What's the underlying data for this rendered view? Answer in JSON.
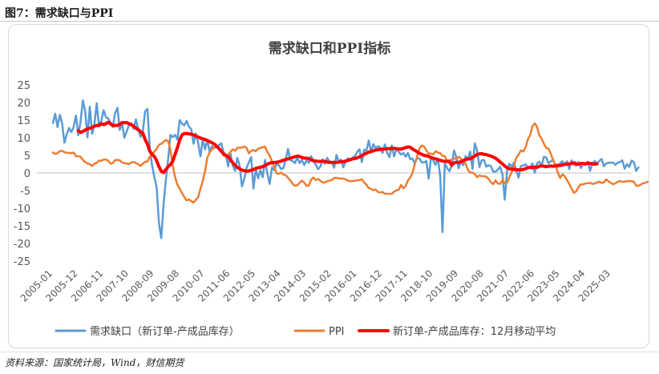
{
  "figure": {
    "label": "图7：需求缺口与PPI",
    "source": "资料来源：国家统计局，Wind，财信期货"
  },
  "chart_data": {
    "type": "line",
    "title": "需求缺口和PPI指标",
    "xlabel": "",
    "ylabel": "",
    "ylim": [
      -25,
      25
    ],
    "y_ticks": [
      -25,
      -20,
      -15,
      -10,
      -5,
      0,
      5,
      10,
      15,
      20,
      25
    ],
    "x_tick_labels": [
      "2005-01",
      "2005-12",
      "2006-11",
      "2007-10",
      "2008-09",
      "2009-08",
      "2010-07",
      "2011-06",
      "2012-05",
      "2013-04",
      "2014-03",
      "2015-02",
      "2016-01",
      "2016-12",
      "2017-11",
      "2018-10",
      "2019-09",
      "2020-08",
      "2021-07",
      "2022-06",
      "2023-05",
      "2024-04",
      "2025-03"
    ],
    "x_start": "2005-01",
    "n_months": 250,
    "grid": false,
    "legend_position": "bottom",
    "series": [
      {
        "name": "需求缺口（新订单-产成品库存）",
        "color": "#5b9bd5",
        "start_index": 0,
        "values": [
          14.2,
          16.8,
          13,
          16.5,
          14.1,
          8.6,
          11,
          12.8,
          11.6,
          13.1,
          16.3,
          10.7,
          14.7,
          20.6,
          17.5,
          10.1,
          18.8,
          11.1,
          13.8,
          19.8,
          13.2,
          14.8,
          17.8,
          15.8,
          15.5,
          14.1,
          13.1,
          17,
          18.5,
          12.2,
          14.2,
          10,
          11.8,
          13.6,
          14.1,
          12.6,
          15.2,
          12.4,
          10.3,
          11.8,
          17.5,
          18.2,
          7.4,
          2.2,
          -1.1,
          -4.1,
          -14.2,
          -18.5,
          -8.9,
          -2,
          4.1,
          10.8,
          10.2,
          10.8,
          9.5,
          15,
          14,
          13.5,
          14.8,
          13.1,
          12.5,
          8.3,
          11.2,
          8.5,
          4.7,
          9.5,
          6.7,
          9.4,
          5.9,
          7.6,
          7.1,
          7.4,
          7.9,
          8.4,
          5.9,
          5.1,
          1.9,
          5.6,
          2.2,
          0.6,
          4.3,
          2.1,
          -3.8,
          -1.7,
          1.4,
          3,
          4.5,
          -4.4,
          1.2,
          -1.5,
          0.8,
          -1.2,
          3.7,
          -0.1,
          -3.1,
          1.5,
          0.8,
          2.6,
          2.2,
          1.1,
          1.4,
          3.9,
          6.8,
          3.6,
          3.4,
          2.8,
          4.4,
          2.8,
          3.7,
          2.3,
          3.5,
          2.9,
          4.8,
          3.4,
          2.4,
          1.1,
          1.8,
          3.9,
          2.6,
          4.3,
          3.2,
          3.1,
          1.5,
          5.1,
          3.3,
          3.8,
          1.6,
          3.3,
          4.2,
          3.6,
          4.4,
          4.8,
          6,
          6.7,
          3.1,
          6.6,
          6.3,
          9.2,
          5.9,
          8.2,
          7,
          7.6,
          7.2,
          5.7,
          8.1,
          5.7,
          4.5,
          7.8,
          4.7,
          6.9,
          6,
          5.2,
          5.7,
          4.6,
          5.7,
          3.9,
          4.1,
          2.7,
          4.3,
          4.1,
          3,
          3,
          3.4,
          -1.6,
          4.4,
          3.6,
          2.3,
          4.1,
          -0.9,
          -16.8,
          2.7,
          1.4,
          0.5,
          2.1,
          6.4,
          4.4,
          1.3,
          3.3,
          2.2,
          4.8,
          3.9,
          6.1,
          1.1,
          8.4,
          6.4,
          1.7,
          3.6,
          3.7,
          1.8,
          2.2,
          1.9,
          0.4,
          0.4,
          0.9,
          1.8,
          -0.3,
          -7.6,
          0.6,
          2.6,
          1.8,
          3,
          0.7,
          -1.3,
          2,
          2.1,
          2.5,
          1.5,
          1.4,
          2.7,
          0.1,
          2.7,
          3.2,
          2,
          4.6,
          4.4,
          2.8,
          3.3,
          3.8,
          2.1,
          1.7,
          2.7,
          3.3,
          2.5,
          3.3,
          1.1,
          3.6,
          2.4,
          2.1,
          3.1,
          1.4,
          2.5,
          2.3,
          3.2,
          0.6,
          2.7,
          3.4,
          2.7,
          3.4,
          4,
          1.9,
          2.7,
          2.9,
          2.9,
          3,
          2.3,
          2.9,
          3.1,
          3.6,
          1.2,
          2.5,
          1.7,
          3.5,
          3.1,
          0.6,
          1.6
        ]
      },
      {
        "name": "PPI",
        "color": "#ed7d31",
        "start_index": 0,
        "values": [
          5.8,
          5.4,
          5.6,
          6.2,
          6.3,
          5.9,
          5.7,
          5.7,
          5.6,
          5.8,
          4.8,
          4.7,
          4.6,
          3.7,
          3.1,
          2.7,
          2.5,
          2,
          2.6,
          2.9,
          3.5,
          3.5,
          3.8,
          3.8,
          3.5,
          2.6,
          2.8,
          3.7,
          3.7,
          3.6,
          3,
          2.8,
          2.7,
          2.5,
          3,
          3.1,
          2.8,
          2.5,
          2,
          2.6,
          3.2,
          3.2,
          4.6,
          5,
          6.1,
          6.8,
          8,
          8.3,
          8.8,
          9.4,
          9,
          6.6,
          2,
          -1.2,
          -3.3,
          -4.5,
          -5.7,
          -6.8,
          -7.8,
          -7.5,
          -8,
          -8.4,
          -7.6,
          -6.8,
          -4.5,
          -2.3,
          0.6,
          4.4,
          5.8,
          6.8,
          7.1,
          7.6,
          7.3,
          6.4,
          5,
          4.7,
          5.1,
          6,
          6.7,
          6.3,
          7.1,
          7.2,
          7.2,
          7.5,
          7.1,
          5.6,
          6.3,
          6.5,
          6.2,
          6.9,
          7.1,
          7.3,
          7.5,
          6,
          5,
          3.3,
          1.7,
          -0.1,
          -0.2,
          0.1,
          -0.5,
          -0.6,
          -1.4,
          -2.1,
          -3.1,
          -3.6,
          -3.5,
          -2.8,
          -2.2,
          -2.7,
          -3.6,
          -3.6,
          -1.9,
          -1.3,
          -2,
          -1.7,
          -2.2,
          -2.7,
          -2.7,
          -2.3,
          -2.2,
          -2,
          -1.4,
          -1.4,
          -1.5,
          -1.6,
          -1.6,
          -1.8,
          -2.2,
          -2.3,
          -2.3,
          -2.2,
          -2.1,
          -2,
          -1.8,
          -2.7,
          -3.3,
          -4.3,
          -4.5,
          -4.9,
          -4.7,
          -5.4,
          -5.5,
          -5.4,
          -5.9,
          -5.9,
          -5.9,
          -5.9,
          -5.3,
          -4.9,
          -4.8,
          -3.4,
          -4.3,
          -3.7,
          -2.1,
          -1.3,
          0,
          2.6,
          4.8,
          6.9,
          7.8,
          7.5,
          6.4,
          5.5,
          5.5,
          5.3,
          6.2,
          5.8,
          5.6,
          4.9,
          4.7,
          3.4,
          3.7,
          3.7,
          4.1,
          4.1,
          4.6,
          4.1,
          3.2,
          2.7,
          0.9,
          0.1,
          0.1,
          -0.3,
          -1.2,
          -0.7,
          -0.9,
          -0.9,
          -1.1,
          -1.7,
          -2.6,
          -3.2,
          -2.1,
          -3,
          -3.1,
          -2,
          -2.9,
          -2.7,
          -1.2,
          0.2,
          2,
          4.3,
          5.2,
          6.4,
          6.1,
          7.2,
          9.5,
          10.7,
          13.3,
          14.1,
          13.1,
          10.7,
          9.7,
          8.3,
          7.1,
          6.9,
          5.4,
          3.6,
          2.1,
          0.2,
          -1.4,
          -0.4,
          -0.9,
          -2,
          -3.1,
          -4.4,
          -5.6,
          -5.2,
          -4,
          -3.2,
          -3.2,
          -3,
          -2.9,
          -2.8,
          -3.1,
          -3,
          -2.7,
          -2.5,
          -2.8,
          -2.7,
          -1.8,
          -2.4,
          -2.8,
          -3.2,
          -2.9,
          -2.5,
          -2.3,
          -2.5,
          -2.5,
          -2.3,
          -2.3,
          -2.3,
          -2.5,
          -3.6,
          -3.6,
          -3.3,
          -2.9,
          -2.8,
          -2.5
        ]
      },
      {
        "name": "新订单-产成品库存：12月移动平均",
        "color": "#ff0000",
        "start_index": 11,
        "values": [
          12,
          11.5,
          11.8,
          12.2,
          12.5,
          12.7,
          12.9,
          13.3,
          13.5,
          13.5,
          14,
          13.7,
          14,
          14.4,
          14,
          13.4,
          13.5,
          13.5,
          13.8,
          14.3,
          14.3,
          14.3,
          14,
          13.7,
          13.3,
          12.7,
          12.3,
          11.7,
          11.3,
          9.5,
          8.2,
          6.2,
          5.3,
          4.7,
          3.5,
          1.8,
          0.5,
          0.1,
          1,
          1.8,
          2.4,
          3.4,
          5.3,
          7.2,
          9.4,
          10.8,
          11.2,
          11.2,
          11.1,
          11,
          10.8,
          10.5,
          10.2,
          9.9,
          9.7,
          9.5,
          9.2,
          8.9,
          8.6,
          8.2,
          7.6,
          6.9,
          6.2,
          5.4,
          5,
          4.6,
          3.8,
          2.9,
          2.2,
          1.6,
          1.2,
          0.8,
          0.7,
          0.5,
          0.6,
          0.8,
          1,
          1.3,
          1.5,
          1.6,
          1.8,
          2.1,
          2.5,
          2.8,
          2.9,
          3,
          3,
          3.2,
          3.4,
          3.6,
          3.9,
          4,
          4.2,
          4.4,
          4.6,
          4.8,
          4.7,
          4.4,
          4.2,
          4.2,
          4.1,
          3.7,
          3.5,
          3.4,
          3.3,
          3.3,
          3.3,
          3.3,
          3.1,
          3,
          3,
          3,
          3,
          3.1,
          3.2,
          3.2,
          3.4,
          3.6,
          3.8,
          4,
          4.1,
          4.3,
          4.6,
          4.9,
          5.3,
          5.6,
          5.9,
          6.1,
          6.3,
          6.5,
          6.6,
          6.7,
          6.8,
          6.8,
          6.9,
          6.9,
          7,
          7,
          6.9,
          6.8,
          6.8,
          7,
          7.2,
          7.4,
          7.3,
          6.8,
          6.4,
          6,
          5.6,
          5.3,
          5,
          4.9,
          4.7,
          4.4,
          4.2,
          4,
          3.8,
          3.6,
          3.4,
          3.3,
          3.3,
          3.2,
          2.2,
          2.9,
          3,
          3,
          3.2,
          3.5,
          3.8,
          4,
          4,
          4.4,
          4.8,
          5.3,
          5.4,
          5.5,
          5.3,
          5.2,
          5,
          4.8,
          4.5,
          4.2,
          3.7,
          3.1,
          2.6,
          2,
          1.5,
          1.2,
          1.1,
          1,
          0.9,
          0.9,
          0.9,
          1,
          1.2,
          1.5,
          1.6,
          1.5,
          1.7,
          1.6,
          1.9,
          2,
          1.9,
          1.8,
          1.9,
          2,
          1.9,
          2,
          2.2,
          2.1,
          2.3,
          2.4,
          2.5,
          2.6,
          2.7,
          2.9,
          2.6,
          2.5,
          2.7,
          2.7,
          2.6,
          2.8,
          2.7,
          2.6,
          2.5,
          2.6
        ]
      }
    ]
  }
}
